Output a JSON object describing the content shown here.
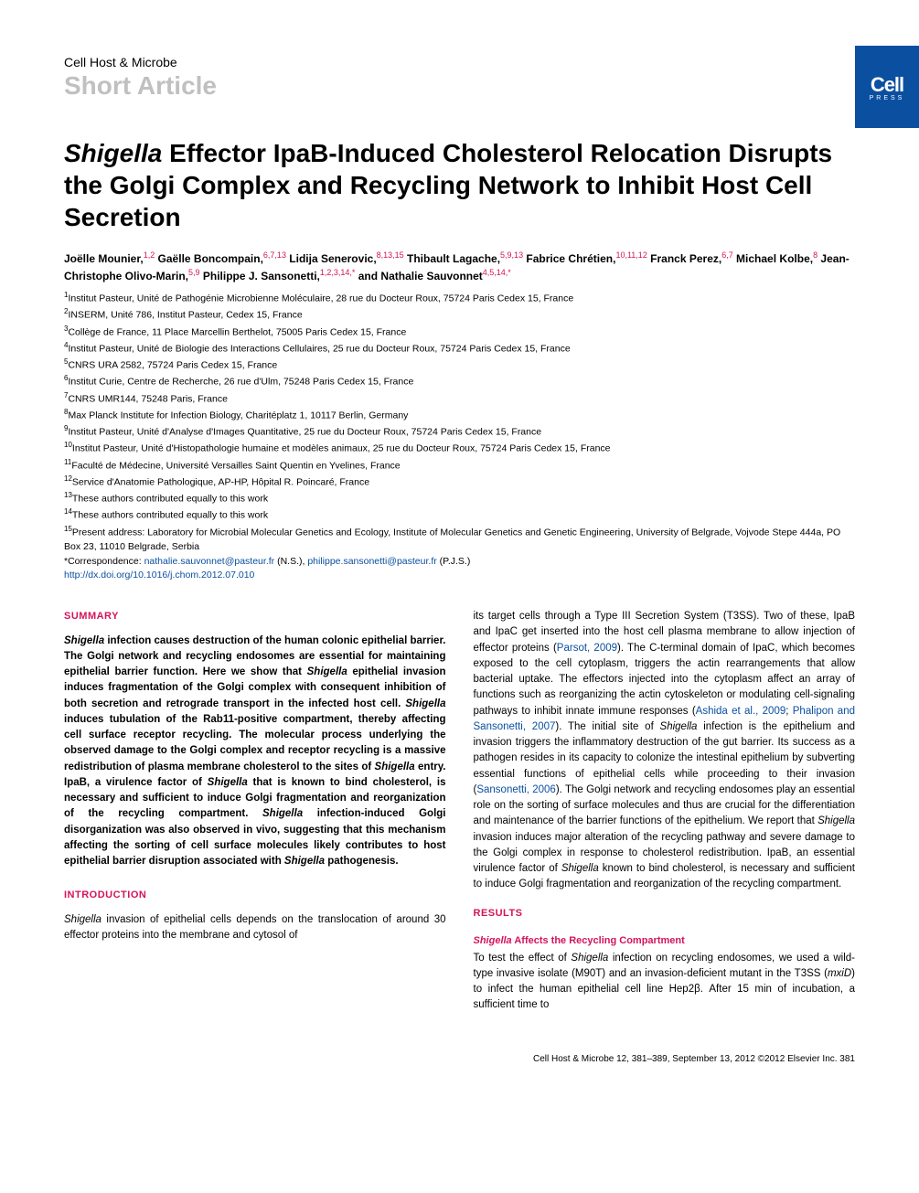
{
  "header": {
    "journal": "Cell Host & Microbe",
    "article_type": "Short Article",
    "logo_main": "Cell",
    "logo_sub": "PRESS"
  },
  "title": {
    "italic_lead": "Shigella",
    "rest": " Effector IpaB-Induced Cholesterol Relocation Disrupts the Golgi Complex and Recycling Network to Inhibit Host Cell Secretion"
  },
  "authors": [
    {
      "name": "Joëlle Mounier,",
      "sup": "1,2"
    },
    {
      "name": " Gaëlle Boncompain,",
      "sup": "6,7,13"
    },
    {
      "name": " Lidija Senerovic,",
      "sup": "8,13,15"
    },
    {
      "name": " Thibault Lagache,",
      "sup": "5,9,13"
    },
    {
      "name": " Fabrice Chrétien,",
      "sup": "10,11,12"
    },
    {
      "name": " Franck Perez,",
      "sup": "6,7"
    },
    {
      "name": " Michael Kolbe,",
      "sup": "8"
    },
    {
      "name": " Jean-Christophe Olivo-Marin,",
      "sup": "5,9"
    },
    {
      "name": " Philippe J. Sansonetti,",
      "sup": "1,2,3,14,*"
    },
    {
      "name": " and Nathalie Sauvonnet",
      "sup": "4,5,14,*"
    }
  ],
  "affiliations": [
    {
      "sup": "1",
      "text": "Institut Pasteur, Unité de Pathogénie Microbienne Moléculaire, 28 rue du Docteur Roux, 75724 Paris Cedex 15, France"
    },
    {
      "sup": "2",
      "text": "INSERM, Unité 786, Institut Pasteur, Cedex 15, France"
    },
    {
      "sup": "3",
      "text": "Collège de France, 11 Place Marcellin Berthelot, 75005 Paris Cedex 15, France"
    },
    {
      "sup": "4",
      "text": "Institut Pasteur, Unité de Biologie des Interactions Cellulaires, 25 rue du Docteur Roux, 75724 Paris Cedex 15, France"
    },
    {
      "sup": "5",
      "text": "CNRS URA 2582, 75724 Paris Cedex 15, France"
    },
    {
      "sup": "6",
      "text": "Institut Curie, Centre de Recherche, 26 rue d'Ulm, 75248 Paris Cedex 15, France"
    },
    {
      "sup": "7",
      "text": "CNRS UMR144, 75248 Paris, France"
    },
    {
      "sup": "8",
      "text": "Max Planck Institute for Infection Biology, Charitéplatz 1, 10117 Berlin, Germany"
    },
    {
      "sup": "9",
      "text": "Institut Pasteur, Unité d'Analyse d'Images Quantitative, 25 rue du Docteur Roux, 75724 Paris Cedex 15, France"
    },
    {
      "sup": "10",
      "text": "Institut Pasteur, Unité d'Histopathologie humaine et modèles animaux, 25 rue du Docteur Roux, 75724 Paris Cedex 15, France"
    },
    {
      "sup": "11",
      "text": "Faculté de Médecine, Université Versailles Saint Quentin en Yvelines, France"
    },
    {
      "sup": "12",
      "text": "Service d'Anatomie Pathologique, AP-HP, Hôpital R. Poincaré, France"
    },
    {
      "sup": "13",
      "text": "These authors contributed equally to this work"
    },
    {
      "sup": "14",
      "text": "These authors contributed equally to this work"
    },
    {
      "sup": "15",
      "text": "Present address: Laboratory for Microbial Molecular Genetics and Ecology, Institute of Molecular Genetics and Genetic Engineering, University of Belgrade, Vojvode Stepe 444a, PO Box 23, 11010 Belgrade, Serbia"
    }
  ],
  "correspondence": {
    "prefix": "*Correspondence: ",
    "email1": "nathalie.sauvonnet@pasteur.fr",
    "suffix1": " (N.S.), ",
    "email2": "philippe.sansonetti@pasteur.fr",
    "suffix2": " (P.J.S.)"
  },
  "doi": "http://dx.doi.org/10.1016/j.chom.2012.07.010",
  "summary": {
    "heading": "SUMMARY",
    "text_parts": [
      {
        "italic": true,
        "t": "Shigella"
      },
      {
        "italic": false,
        "t": " infection causes destruction of the human colonic epithelial barrier. The Golgi network and recycling endosomes are essential for maintaining epithelial barrier function. Here we show that "
      },
      {
        "italic": true,
        "t": "Shigella"
      },
      {
        "italic": false,
        "t": " epithelial invasion induces fragmentation of the Golgi complex with consequent inhibition of both secretion and retrograde transport in the infected host cell. "
      },
      {
        "italic": true,
        "t": "Shigella"
      },
      {
        "italic": false,
        "t": " induces tubulation of the Rab11-positive compartment, thereby affecting cell surface receptor recycling. The molecular process underlying the observed damage to the Golgi complex and receptor recycling is a massive redistribution of plasma membrane cholesterol to the sites of "
      },
      {
        "italic": true,
        "t": "Shigella"
      },
      {
        "italic": false,
        "t": " entry. IpaB, a virulence factor of "
      },
      {
        "italic": true,
        "t": "Shigella"
      },
      {
        "italic": false,
        "t": " that is known to bind cholesterol, is necessary and sufficient to induce Golgi fragmentation and reorganization of the recycling compartment. "
      },
      {
        "italic": true,
        "t": "Shigella"
      },
      {
        "italic": false,
        "t": " infection-induced Golgi disorganization was also observed in vivo, suggesting that this mechanism affecting the sorting of cell surface molecules likely contributes to host epithelial barrier disruption associated with "
      },
      {
        "italic": true,
        "t": "Shigella"
      },
      {
        "italic": false,
        "t": " pathogenesis."
      }
    ]
  },
  "introduction": {
    "heading": "INTRODUCTION",
    "para1_parts": [
      {
        "italic": true,
        "t": "Shigella"
      },
      {
        "italic": false,
        "t": " invasion of epithelial cells depends on the translocation of around 30 effector proteins into the membrane and cytosol of"
      }
    ]
  },
  "col2": {
    "para1_pre": "its target cells through a Type III Secretion System (T3SS). Two of these, IpaB and IpaC get inserted into the host cell plasma membrane to allow injection of effector proteins (",
    "ref1": "Parsot, 2009",
    "para1_mid1": "). The C-terminal domain of IpaC, which becomes exposed to the cell cytoplasm, triggers the actin rearrangements that allow bacterial uptake. The effectors injected into the cytoplasm affect an array of functions such as reorganizing the actin cytoskeleton or modulating cell-signaling pathways to inhibit innate immune responses (",
    "ref2": "Ashida et al., 2009",
    "para1_sep": "; ",
    "ref3": "Phalipon and Sansonetti, 2007",
    "para1_mid2": "). The initial site of ",
    "italic1": "Shigella",
    "para1_mid3": " infection is the epithelium and invasion triggers the inflammatory destruction of the gut barrier. Its success as a pathogen resides in its capacity to colonize the intestinal epithelium by subverting essential functions of epithelial cells while proceeding to their invasion (",
    "ref4": "Sansonetti, 2006",
    "para1_mid4": "). The Golgi network and recycling endosomes play an essential role on the sorting of surface molecules and thus are crucial for the differentiation and maintenance of the barrier functions of the epithelium. We report that ",
    "italic2": "Shigella",
    "para1_mid5": " invasion induces major alteration of the recycling pathway and severe damage to the Golgi complex in response to cholesterol redistribution. IpaB, an essential virulence factor of ",
    "italic3": "Shigella",
    "para1_end": " known to bind cholesterol, is necessary and sufficient to induce Golgi fragmentation and reorganization of the recycling compartment."
  },
  "results": {
    "heading": "RESULTS",
    "subhead_italic": "Shigella",
    "subhead_rest": " Affects the Recycling Compartment",
    "para_pre": "To test the effect of ",
    "para_it1": "Shigella",
    "para_mid1": " infection on recycling endosomes, we used a wild-type invasive isolate (M90T) and an invasion-deficient mutant in the T3SS (",
    "para_it2": "mxiD",
    "para_end": ") to infect the human epithelial cell line Hep2β. After 15 min of incubation, a sufficient time to"
  },
  "footer": {
    "text": "Cell Host & Microbe 12, 381–389, September 13, 2012 ©2012 Elsevier Inc.   381"
  },
  "colors": {
    "accent": "#d4145a",
    "link": "#0b4fa0",
    "gray": "#c0c0c0",
    "logo_bg": "#0b4fa0"
  }
}
